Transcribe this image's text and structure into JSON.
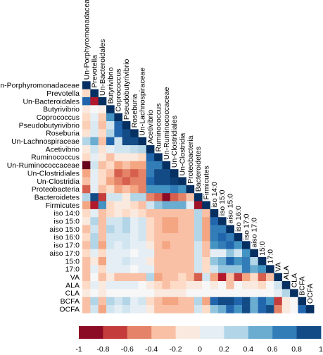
{
  "chart_data": {
    "type": "heatmap",
    "variables": [
      "Un-Porphyromonadaceae",
      "Prevotella",
      "Un-Bacteroidales",
      "Butyrivibrio",
      "Coprococcus",
      "Pseudobutyrivibrio",
      "Roseburia",
      "Un-Lachnospiraceae",
      "Acetivibrio",
      "Ruminococcus",
      "Un-Ruminococcaceae",
      "Un-Clostridiales",
      "Un-Clostridia",
      "Proteobacteria",
      "Bacteroidetes",
      "Firmicutes",
      "iso 14:0",
      "iso 15:0",
      "aiso 15:0",
      "iso 16:0",
      "iso 17:0",
      "aiso 17:0",
      "15:0",
      "17:0",
      "VA",
      "ALA",
      "CLA",
      "BCFA",
      "OCFA"
    ],
    "matrix_rows": [
      [
        1
      ],
      [
        -0.2,
        1
      ],
      [
        0.8,
        -0.8,
        1
      ],
      [
        -0.1,
        0,
        -0.05,
        1
      ],
      [
        -0.2,
        0.1,
        -0.25,
        0.6,
        1
      ],
      [
        -0.25,
        0.15,
        -0.3,
        0.2,
        0.8,
        1
      ],
      [
        -0.15,
        0.15,
        -0.2,
        0.3,
        0.8,
        0.9,
        1
      ],
      [
        0.3,
        0.5,
        -0.3,
        0.8,
        0.2,
        0.9,
        0.9,
        1
      ],
      [
        -0.1,
        0.2,
        -0.15,
        0.1,
        0.2,
        0.2,
        0.25,
        0.3,
        1
      ],
      [
        -0.2,
        0.1,
        -0.1,
        -0.3,
        -0.1,
        -0.1,
        -0.1,
        -0.2,
        0.8,
        1
      ],
      [
        -1,
        0.2,
        -0.3,
        -0.2,
        -0.4,
        -0.3,
        -0.4,
        -0.4,
        0.7,
        0.7,
        1
      ],
      [
        -0.4,
        0.1,
        -0.2,
        -0.3,
        -0.6,
        -0.5,
        -0.6,
        -0.5,
        0.7,
        0.9,
        0.9,
        1
      ],
      [
        -0.3,
        0.1,
        -0.2,
        -0.4,
        -0.5,
        -0.6,
        -0.5,
        -0.5,
        0.8,
        0.9,
        0.9,
        0.95,
        1
      ],
      [
        -0.6,
        0.1,
        -0.3,
        -0.2,
        -0.4,
        -0.3,
        -0.4,
        -0.5,
        0.6,
        0.6,
        0.6,
        0.7,
        0.6,
        1
      ],
      [
        0.3,
        0.9,
        -0.7,
        0.2,
        0.2,
        -0.1,
        0.3,
        0.3,
        -0.5,
        -0.6,
        -0.9,
        -0.6,
        -0.5,
        -0.3,
        1
      ],
      [
        -0.4,
        -0.8,
        0.6,
        -0.2,
        -0.1,
        -0.1,
        -0.2,
        -0.3,
        0.2,
        0.4,
        0.5,
        0.5,
        0.5,
        0.1,
        -0.85,
        1
      ],
      [
        -0.2,
        0.1,
        -0.3,
        -0.2,
        -0.1,
        -0.2,
        -0.1,
        -0.2,
        -0.3,
        -0.3,
        -0.3,
        -0.3,
        -0.3,
        -0.3,
        0.3,
        -0.3,
        1
      ],
      [
        -0.1,
        0.3,
        -0.3,
        0.2,
        0.2,
        0.3,
        0.1,
        0.2,
        -0.2,
        -0.3,
        -0.4,
        -0.4,
        -0.3,
        -0.3,
        0.3,
        -0.4,
        0.8,
        1
      ],
      [
        -0.3,
        0.2,
        -0.3,
        0.3,
        0.2,
        0.3,
        0.1,
        0.2,
        -0.2,
        -0.3,
        -0.4,
        -0.4,
        -0.3,
        -0.3,
        0.3,
        -0.4,
        0.7,
        0.7,
        1
      ],
      [
        -0.2,
        0.3,
        -0.3,
        0.2,
        0.2,
        0.2,
        0.1,
        0.2,
        -0.2,
        -0.3,
        -0.3,
        -0.3,
        -0.3,
        -0.3,
        0.3,
        -0.4,
        0.7,
        0.8,
        0.7,
        1
      ],
      [
        -0.3,
        0.3,
        -0.4,
        0.2,
        0.1,
        0.2,
        0.1,
        0.1,
        -0.1,
        -0.3,
        -0.4,
        -0.3,
        -0.3,
        -0.3,
        0.2,
        -0.3,
        0.6,
        0.7,
        0.8,
        0.6,
        1
      ],
      [
        -0.2,
        0.1,
        -0.2,
        0.1,
        0.1,
        0.1,
        0,
        0.1,
        0.1,
        -0.3,
        -0.3,
        -0.3,
        -0.3,
        -0.3,
        0.2,
        -0.3,
        0.1,
        0.1,
        0.4,
        0.2,
        0.6,
        1
      ],
      [
        -0.3,
        -0.1,
        -0.4,
        0.1,
        0.1,
        0.2,
        0.1,
        0.1,
        -0.1,
        -0.3,
        -0.3,
        -0.3,
        -0.3,
        -0.3,
        0.2,
        -0.2,
        0.4,
        0.5,
        0.8,
        0.6,
        0.7,
        0.3,
        1
      ],
      [
        -0.3,
        0.1,
        -0.2,
        0.1,
        0.1,
        0.1,
        0,
        0.1,
        0.1,
        -0.3,
        -0.3,
        -0.3,
        -0.3,
        -0.3,
        0.2,
        -0.2,
        0.2,
        0.4,
        0.4,
        0.4,
        0.7,
        0.5,
        0.6,
        1
      ],
      [
        -0.3,
        0,
        -0.3,
        -0.1,
        -0.3,
        -0.3,
        -0.3,
        -0.3,
        0.3,
        -0.4,
        -0.3,
        -0.3,
        -0.2,
        -0.3,
        -0.6,
        0.2,
        -0.4,
        -0.8,
        -0.3,
        -0.7,
        -0.4,
        -0.2,
        -0.6,
        -0.3,
        1
      ],
      [
        -0.2,
        0.1,
        -0.1,
        0.1,
        0.1,
        0.1,
        0.1,
        0,
        -0.1,
        -0.2,
        -0.3,
        -0.2,
        -0.2,
        -0.1,
        -0.1,
        0,
        -0.1,
        0,
        -0.3,
        0,
        -0.1,
        -0.1,
        -0.2,
        0,
        0.2,
        1
      ],
      [
        -0.1,
        0,
        -0.1,
        0,
        0,
        0,
        0,
        0,
        0,
        -0.1,
        -0.1,
        -0.1,
        -0.1,
        0,
        0,
        0,
        0,
        0,
        0,
        0,
        0,
        0,
        0,
        0,
        0.1,
        0.3,
        1
      ],
      [
        -0.3,
        0.3,
        -0.3,
        0.3,
        0.2,
        0.3,
        0.1,
        0.2,
        -0.2,
        -0.3,
        -0.4,
        -0.4,
        -0.3,
        -0.3,
        0.3,
        -0.4,
        0.8,
        0.9,
        0.9,
        0.8,
        0.9,
        0.5,
        0.8,
        0.6,
        -0.7,
        -0.1,
        0,
        1
      ],
      [
        -0.3,
        0.2,
        -0.4,
        0.2,
        0.1,
        0.2,
        0.1,
        0.1,
        -0.1,
        -0.3,
        -0.3,
        -0.3,
        -0.3,
        -0.3,
        0.2,
        -0.2,
        0.4,
        0.5,
        0.8,
        0.6,
        0.9,
        0.5,
        0.8,
        0.9,
        -0.5,
        -0.1,
        0,
        0.8,
        1
      ]
    ],
    "color_scale": {
      "ticks": [
        -1,
        -0.8,
        -0.6,
        -0.4,
        -0.2,
        0,
        0.2,
        0.4,
        0.6,
        0.8,
        1
      ],
      "tick_labels": [
        "-1",
        "-0.8",
        "-0.6",
        "-0.4",
        "-0.2",
        "0",
        "0.2",
        "0.4",
        "0.6",
        "0.8",
        "1"
      ],
      "colors": [
        "#67001f",
        "#b2182b",
        "#d6604d",
        "#f4a582",
        "#fddbc7",
        "#f7f7f7",
        "#d1e5f0",
        "#92c5de",
        "#4393c3",
        "#2166ac",
        "#053061"
      ]
    },
    "title": "",
    "xlabel": "",
    "ylabel": ""
  }
}
